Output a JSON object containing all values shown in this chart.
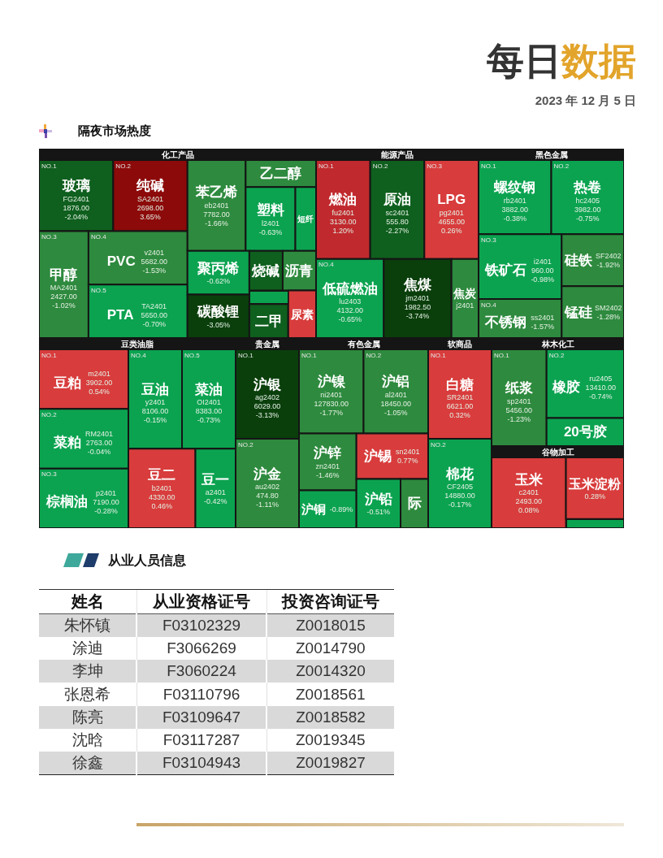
{
  "chart_data": [
    {
      "type": "other",
      "title": "隔夜市场热度",
      "annotations": [
        "每日数据",
        "2023 年 12 月 5 日"
      ]
    },
    {
      "type": "other",
      "title": "化工产品",
      "categories": [
        "玻璃",
        "纯碱",
        "甲醇",
        "PVC",
        "PTA",
        "苯乙烯",
        "乙二醇",
        "塑料",
        "短纤",
        "聚丙烯",
        "碳酸锂",
        "烧碱",
        "沥青",
        null,
        "二甲",
        "尿素"
      ],
      "values": [
        -2.04,
        3.65,
        -1.02,
        -1.53,
        -0.7,
        -1.66,
        null,
        -0.63,
        null,
        -0.62,
        -3.05,
        null,
        null,
        null,
        null,
        null
      ],
      "value_labels": [
        "-2.04%",
        "3.65%",
        "-1.02%",
        "-1.53%",
        "-0.70%",
        "-1.66%",
        null,
        "-0.63%",
        null,
        "-0.62%",
        "-3.05%",
        null,
        null,
        null,
        null,
        null
      ],
      "colors": [
        "#0f5f1e",
        "#8c0a0a",
        "#2e8a3e",
        "#2e8a3e",
        "#0ba350",
        "#2e8a3e",
        "#2e8a3e",
        "#0ba350",
        "#0ba350",
        "#0ba350",
        "#0a3f0c",
        "#0f5f1e",
        "#2e8a3e",
        "#0ba350",
        "#0f5f1e",
        "#d83c3c"
      ],
      "cell_labels": [
        [
          "NO.1",
          "FG2401",
          "1876.00"
        ],
        [
          "NO.2",
          "SA2401",
          "2698.00"
        ],
        [
          "NO.3",
          "MA2401",
          "2427.00"
        ],
        [
          "NO.4",
          "v2401",
          "5682.00"
        ],
        [
          "NO.5",
          "TA2401",
          "5650.00"
        ],
        [
          null,
          "eb2401",
          "7782.00"
        ],
        null,
        [
          null,
          "l2401",
          null
        ],
        null,
        null,
        null,
        null,
        null,
        null,
        null,
        null
      ]
    },
    {
      "type": "other",
      "title": "能源产品",
      "categories": [
        "燃油",
        "原油",
        "LPG",
        "低硫燃油",
        "焦煤",
        "焦炭"
      ],
      "values": [
        1.2,
        -2.27,
        0.26,
        -0.65,
        -3.74,
        null
      ],
      "value_labels": [
        "1.20%",
        "-2.27%",
        "0.26%",
        "-0.65%",
        "-3.74%",
        null
      ],
      "colors": [
        "#c0292d",
        "#0f5f1e",
        "#d83c3c",
        "#0ba350",
        "#0a3f0c",
        "#2e8a3e"
      ],
      "cell_labels": [
        [
          "NO.1",
          "fu2401",
          "3130.00"
        ],
        [
          "NO.2",
          "sc2401",
          "555.80"
        ],
        [
          "NO.3",
          "pg2401",
          "4655.00"
        ],
        [
          "NO.4",
          "lu2403",
          "4132.00"
        ],
        [
          null,
          "jm2401",
          "1982.50"
        ],
        [
          null,
          "j2401",
          null
        ]
      ]
    },
    {
      "type": "other",
      "title": "黑色金属",
      "categories": [
        "螺纹钢",
        "热卷",
        "铁矿石",
        "不锈钢",
        "硅铁",
        "锰硅"
      ],
      "values": [
        -0.38,
        -0.75,
        -0.98,
        -1.57,
        -1.92,
        -1.28
      ],
      "value_labels": [
        "-0.38%",
        "-0.75%",
        "-0.98%",
        "-1.57%",
        "-1.92%",
        "-1.28%"
      ],
      "colors": [
        "#0ba350",
        "#0ba350",
        "#0ba350",
        "#2e8a3e",
        "#2e8a3e",
        "#2e8a3e"
      ],
      "cell_labels": [
        [
          "NO.1",
          "rb2401",
          "3882.00"
        ],
        [
          "NO.2",
          "hc2405",
          "3982.00"
        ],
        [
          "NO.3",
          "i2401",
          "960.00"
        ],
        [
          "NO.4",
          "ss2401",
          null
        ],
        [
          null,
          "SF2402",
          null
        ],
        [
          null,
          "SM2402",
          null
        ]
      ]
    },
    {
      "type": "other",
      "title": "豆类油脂",
      "categories": [
        "豆粕",
        "菜粕",
        "棕榈油",
        "豆油",
        "菜油",
        "豆二",
        "豆一"
      ],
      "values": [
        0.54,
        -0.04,
        -0.28,
        -0.15,
        -0.73,
        0.46,
        -0.42
      ],
      "value_labels": [
        "0.54%",
        "-0.04%",
        "-0.28%",
        "-0.15%",
        "-0.73%",
        "0.46%",
        "-0.42%"
      ],
      "colors": [
        "#d83c3c",
        "#0ba350",
        "#0ba350",
        "#0ba350",
        "#0ba350",
        "#d83c3c",
        "#0ba350"
      ],
      "cell_labels": [
        [
          "NO.1",
          "m2401",
          "3902.00"
        ],
        [
          "NO.2",
          "RM2401",
          "2763.00"
        ],
        [
          "NO.3",
          "p2401",
          "7190.00"
        ],
        [
          "NO.4",
          "y2401",
          "8106.00"
        ],
        [
          "NO.5",
          "OI2401",
          "8383.00"
        ],
        [
          null,
          "b2401",
          "4330.00"
        ],
        [
          null,
          "a2401",
          null
        ]
      ]
    },
    {
      "type": "other",
      "title": "贵金属",
      "categories": [
        "沪银",
        "沪金"
      ],
      "values": [
        -3.13,
        -1.11
      ],
      "value_labels": [
        "-3.13%",
        "-1.11%"
      ],
      "colors": [
        "#0a3f0c",
        "#2e8a3e"
      ],
      "cell_labels": [
        [
          "NO.1",
          "ag2402",
          "6029.00"
        ],
        [
          "NO.2",
          "au2402",
          "474.80"
        ]
      ]
    },
    {
      "type": "other",
      "title": "有色金属",
      "categories": [
        "沪镍",
        "沪铝",
        "沪锌",
        "沪铜",
        "沪锡",
        "沪铅",
        "际"
      ],
      "values": [
        -1.77,
        -1.05,
        -1.46,
        -0.89,
        0.77,
        -0.51,
        null
      ],
      "value_labels": [
        "-1.77%",
        "-1.05%",
        "-1.46%",
        "-0.89%",
        "0.77%",
        "-0.51%",
        null
      ],
      "colors": [
        "#2e8a3e",
        "#2e8a3e",
        "#2e8a3e",
        "#0ba350",
        "#d83c3c",
        "#0ba350",
        "#2e8a3e"
      ],
      "cell_labels": [
        [
          "NO.1",
          "ni2401",
          "127830.00"
        ],
        [
          "NO.2",
          "al2401",
          "18450.00"
        ],
        [
          null,
          "zn2401",
          null
        ],
        null,
        [
          null,
          "sn2401",
          null
        ],
        null,
        null
      ]
    },
    {
      "type": "other",
      "title": "软商品",
      "categories": [
        "白糖",
        "棉花"
      ],
      "values": [
        0.32,
        -0.17
      ],
      "value_labels": [
        "0.32%",
        "-0.17%"
      ],
      "colors": [
        "#d83c3c",
        "#0ba350"
      ],
      "cell_labels": [
        [
          "NO.1",
          "SR2401",
          "6621.00"
        ],
        [
          "NO.2",
          "CF2405",
          "14880.00"
        ]
      ]
    },
    {
      "type": "other",
      "title": "林木化工",
      "categories": [
        "纸浆",
        "橡胶",
        "20号胶"
      ],
      "values": [
        -1.23,
        -0.74,
        null
      ],
      "value_labels": [
        "-1.23%",
        "-0.74%",
        null
      ],
      "colors": [
        "#2e8a3e",
        "#0ba350",
        "#0ba350"
      ],
      "cell_labels": [
        [
          "NO.1",
          "sp2401",
          "5456.00"
        ],
        [
          "NO.2",
          "ru2405",
          "13410.00"
        ],
        null
      ]
    },
    {
      "type": "other",
      "title": "谷物加工",
      "categories": [
        "玉米",
        "玉米淀粉",
        null
      ],
      "values": [
        0.08,
        0.28,
        null
      ],
      "value_labels": [
        "0.08%",
        "0.28%",
        null
      ],
      "colors": [
        "#d83c3c",
        "#d83c3c",
        "#0ba350"
      ],
      "cell_labels": [
        [
          null,
          "c2401",
          "2493.00"
        ],
        null,
        null
      ]
    },
    {
      "type": "other",
      "title": "从业人员信息",
      "categories": [
        "姓名",
        "从业资格证号",
        "投资咨询证号"
      ],
      "cell_labels": [
        [
          "朱怀镇",
          "F03102329",
          "Z0018015"
        ],
        [
          "涂迪",
          "F3066269",
          "Z0014790"
        ],
        [
          "李坤",
          "F3060224",
          "Z0014320"
        ],
        [
          "张恩希",
          "F03110796",
          "Z0018561"
        ],
        [
          "陈亮",
          "F03109647",
          "Z0018582"
        ],
        [
          "沈晗",
          "F03117287",
          "Z0019345"
        ],
        [
          "徐鑫",
          "F03104943",
          "Z0019827"
        ]
      ]
    }
  ]
}
